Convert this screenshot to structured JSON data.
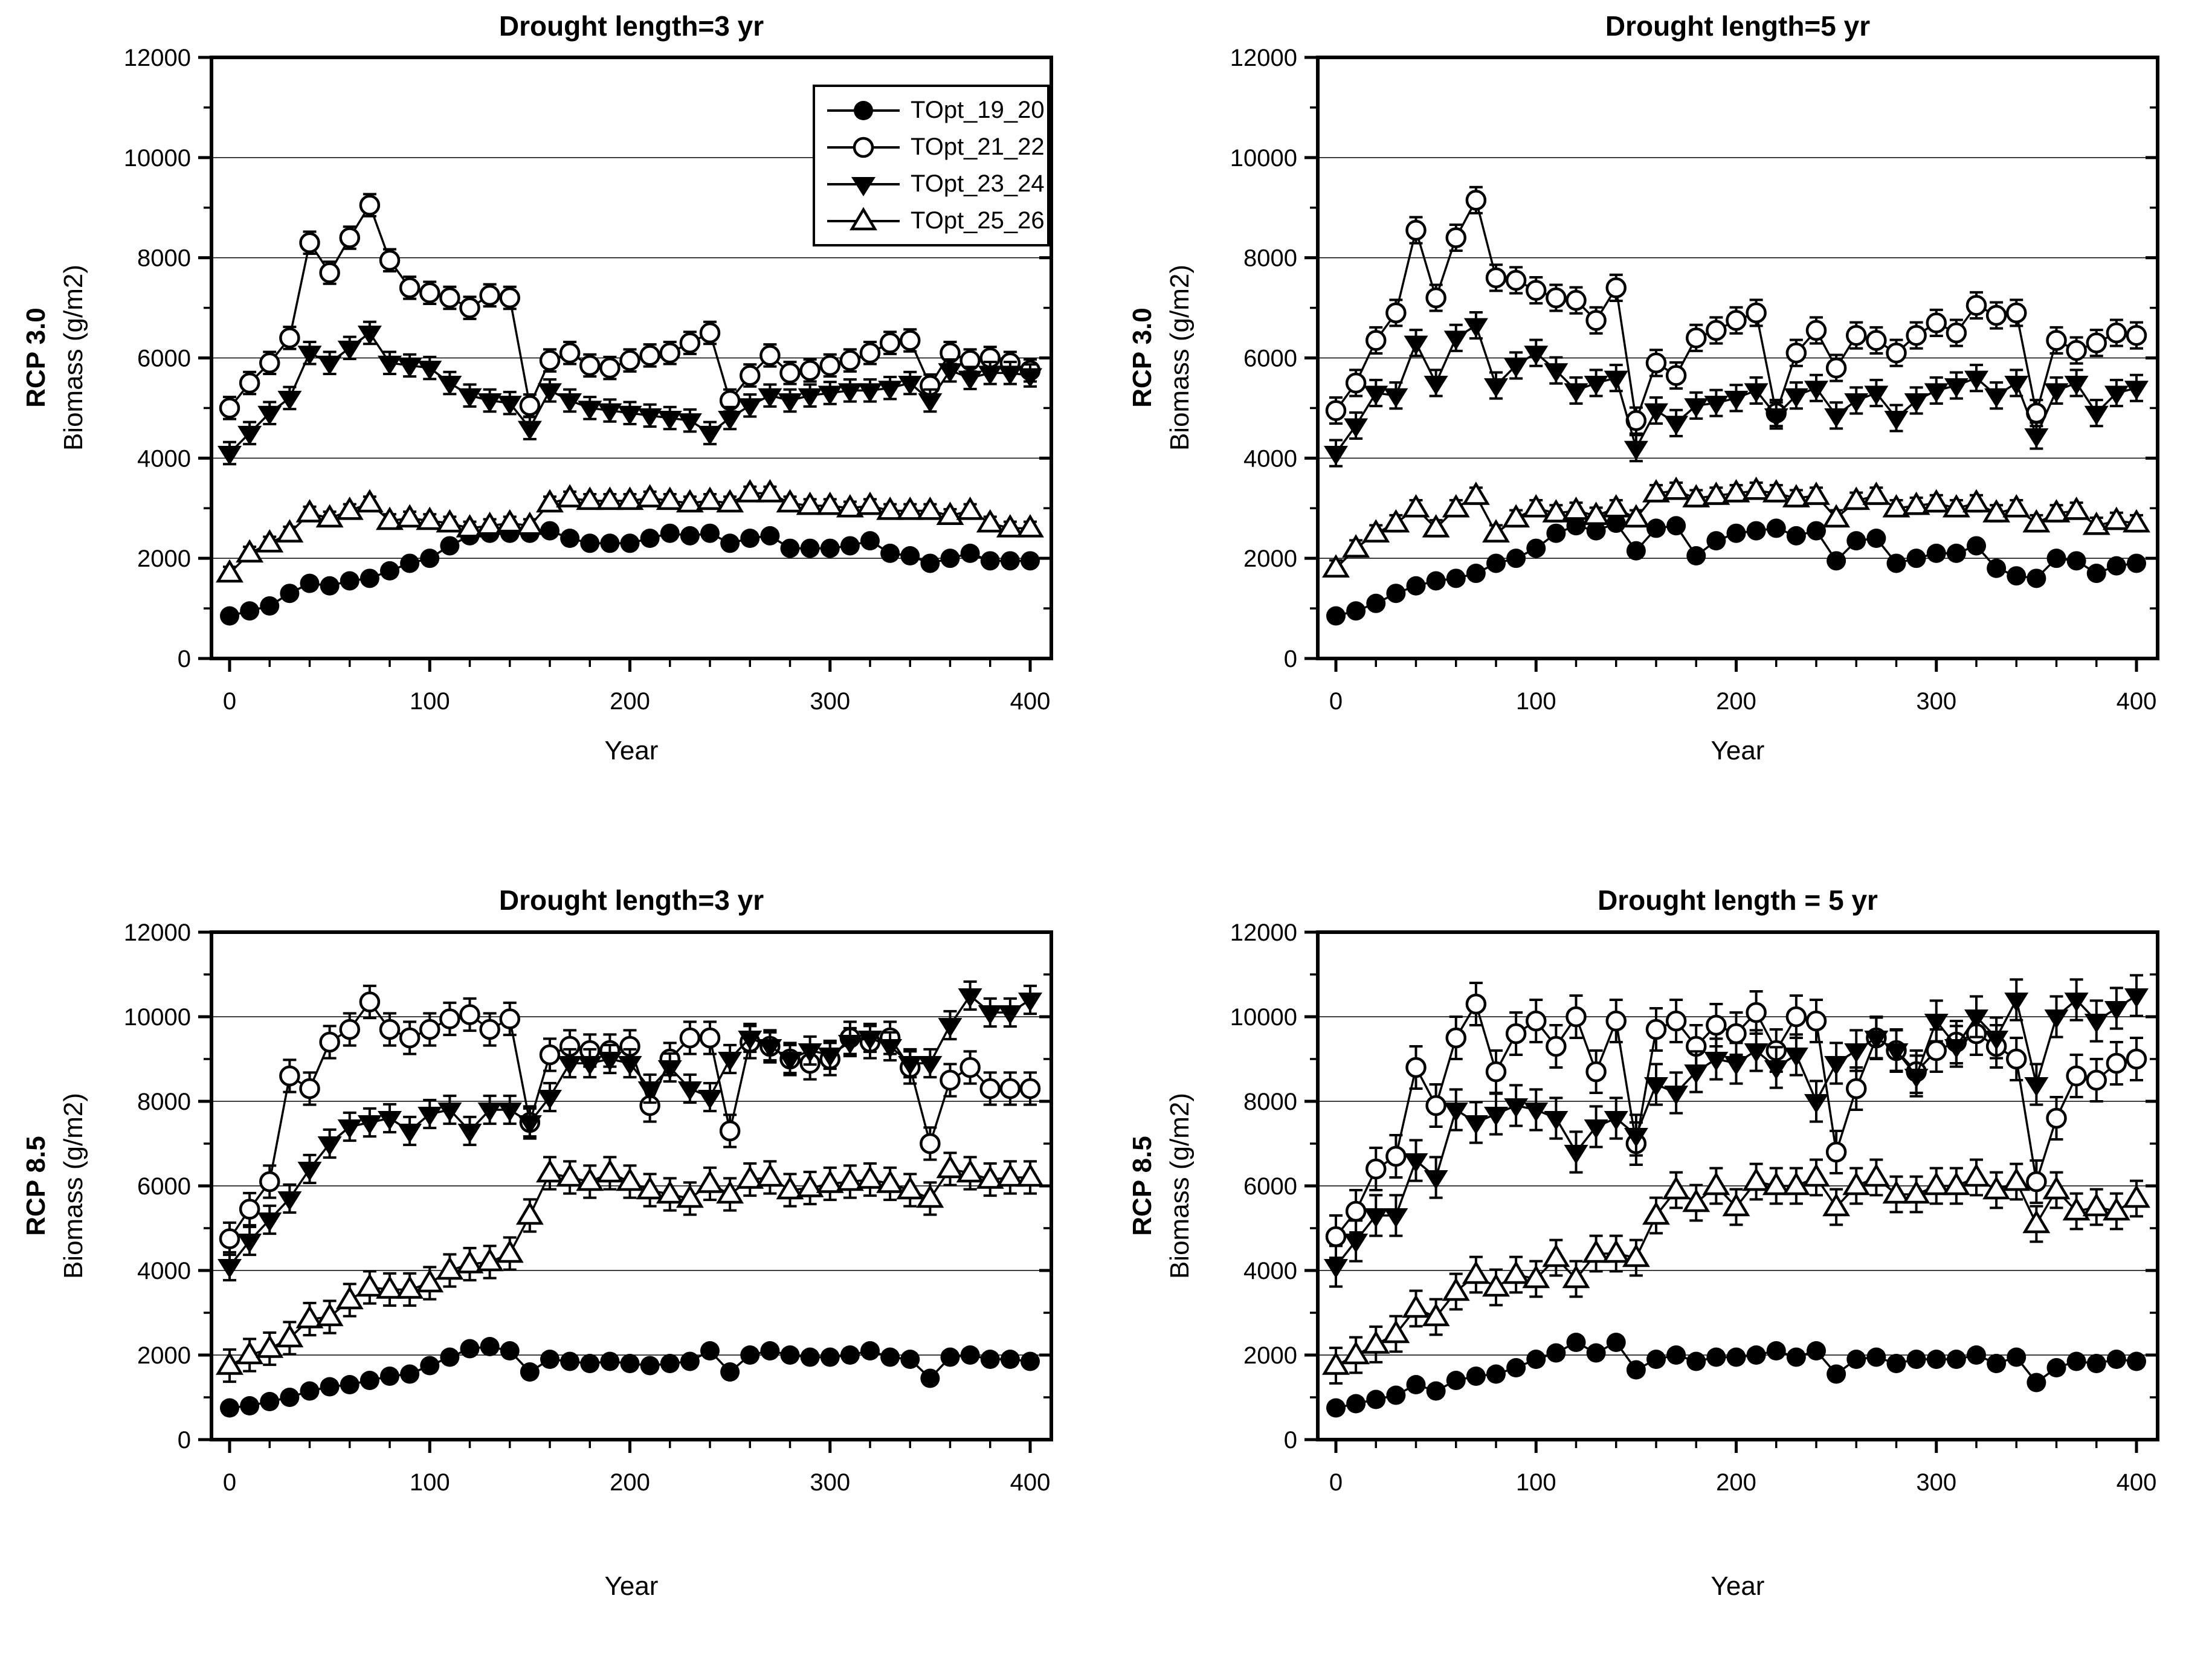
{
  "page": {
    "background": "#ffffff",
    "foreground": "#000000"
  },
  "legend": {
    "entries": [
      {
        "label": "TOpt_19_20",
        "marker": "circle-filled"
      },
      {
        "label": "TOpt_21_22",
        "marker": "circle-open"
      },
      {
        "label": "TOpt_23_24",
        "marker": "triangle-down-filled"
      },
      {
        "label": "TOpt_25_26",
        "marker": "triangle-up-open"
      }
    ]
  },
  "axis_defaults": {
    "x": {
      "label": "Year",
      "min": 0,
      "max": 400,
      "major_tick": 100,
      "minor_tick": 20,
      "tick_labels": [
        0,
        100,
        200,
        300,
        400
      ]
    },
    "y": {
      "label": "Biomass (g/m2)",
      "min": 0,
      "max": 12000,
      "major_tick": 2000,
      "minor_tick": 1000,
      "tick_labels": [
        0,
        2000,
        4000,
        6000,
        8000,
        10000,
        12000
      ],
      "gridlines": [
        2000,
        4000,
        6000,
        8000,
        10000
      ]
    }
  },
  "x_years": [
    0,
    10,
    20,
    30,
    40,
    50,
    60,
    70,
    80,
    90,
    100,
    110,
    120,
    130,
    140,
    150,
    160,
    170,
    180,
    190,
    200,
    210,
    220,
    230,
    240,
    250,
    260,
    270,
    280,
    290,
    300,
    310,
    320,
    330,
    340,
    350,
    360,
    370,
    380,
    390,
    400
  ],
  "chart_data": [
    {
      "type": "line",
      "position": "top-left",
      "row": "top",
      "title": "Drought length=3 yr",
      "row_label": "RCP 3.0",
      "ylabel": "Biomass (g/m2)",
      "xlabel": "Year",
      "xlim": [
        0,
        410
      ],
      "ylim": [
        0,
        12000
      ],
      "grid": true,
      "legend_visible": true,
      "series": [
        {
          "name": "TOpt_19_20",
          "marker": "circle-filled",
          "err": 80,
          "values": [
            850,
            950,
            1050,
            1300,
            1500,
            1450,
            1550,
            1600,
            1750,
            1900,
            2000,
            2250,
            2450,
            2500,
            2500,
            2500,
            2550,
            2400,
            2300,
            2300,
            2300,
            2400,
            2500,
            2450,
            2500,
            2300,
            2400,
            2450,
            2200,
            2200,
            2200,
            2250,
            2350,
            2100,
            2050,
            1900,
            2000,
            2100,
            1950,
            1950,
            1950
          ]
        },
        {
          "name": "TOpt_21_22",
          "marker": "circle-open",
          "err": 220,
          "values": [
            5000,
            5500,
            5900,
            6400,
            8300,
            7700,
            8400,
            9050,
            7950,
            7400,
            7300,
            7200,
            7000,
            7250,
            7200,
            5050,
            5950,
            6100,
            5850,
            5800,
            5950,
            6050,
            6100,
            6300,
            6500,
            5150,
            5650,
            6050,
            5700,
            5750,
            5850,
            5950,
            6100,
            6300,
            6350,
            5450,
            6100,
            5950,
            6000,
            5900,
            5750
          ]
        },
        {
          "name": "TOpt_23_24",
          "marker": "triangle-down-filled",
          "err": 220,
          "values": [
            4100,
            4500,
            4900,
            5200,
            6100,
            5900,
            6200,
            6500,
            5900,
            5850,
            5800,
            5500,
            5250,
            5150,
            5100,
            4600,
            5350,
            5150,
            5000,
            4950,
            4900,
            4850,
            4800,
            4750,
            4500,
            4800,
            5050,
            5250,
            5150,
            5250,
            5300,
            5350,
            5350,
            5400,
            5500,
            5150,
            5750,
            5600,
            5700,
            5700,
            5650
          ]
        },
        {
          "name": "TOpt_25_26",
          "marker": "triangle-up-open",
          "err": 130,
          "values": [
            1700,
            2100,
            2300,
            2500,
            2900,
            2800,
            2950,
            3100,
            2750,
            2800,
            2750,
            2700,
            2600,
            2650,
            2700,
            2650,
            3100,
            3200,
            3150,
            3150,
            3150,
            3200,
            3150,
            3100,
            3150,
            3100,
            3300,
            3300,
            3100,
            3050,
            3050,
            3000,
            3050,
            2950,
            2950,
            2950,
            2850,
            2950,
            2700,
            2600,
            2600
          ]
        }
      ]
    },
    {
      "type": "line",
      "position": "top-right",
      "row": "top",
      "title": "Drought length=5 yr",
      "row_label": "RCP 3.0",
      "ylabel": "Biomass (g/m2)",
      "xlabel": "Year",
      "xlim": [
        0,
        410
      ],
      "ylim": [
        0,
        12000
      ],
      "grid": true,
      "legend_visible": false,
      "series": [
        {
          "name": "TOpt_19_20",
          "marker": "circle-filled",
          "err": 110,
          "values": [
            850,
            950,
            1100,
            1300,
            1450,
            1550,
            1600,
            1700,
            1900,
            2000,
            2200,
            2500,
            2650,
            2550,
            2700,
            2150,
            2600,
            2650,
            2050,
            2350,
            2500,
            2550,
            2600,
            2450,
            2550,
            1950,
            2350,
            2400,
            1900,
            2000,
            2100,
            2100,
            2250,
            1800,
            1650,
            1600,
            2000,
            1950,
            1700,
            1850,
            1900
          ]
        },
        {
          "name": "TOpt_21_22",
          "marker": "circle-open",
          "err": 260,
          "values": [
            4950,
            5500,
            6350,
            6900,
            8550,
            7200,
            8400,
            9150,
            7600,
            7550,
            7350,
            7200,
            7150,
            6750,
            7400,
            4750,
            5900,
            5650,
            6400,
            6550,
            6750,
            6900,
            4900,
            6100,
            6550,
            5800,
            6450,
            6350,
            6100,
            6450,
            6700,
            6500,
            7050,
            6850,
            6900,
            4900,
            6350,
            6150,
            6300,
            6500,
            6450
          ]
        },
        {
          "name": "TOpt_23_24",
          "marker": "triangle-down-filled",
          "err": 260,
          "values": [
            4100,
            4650,
            5300,
            5250,
            6300,
            5500,
            6400,
            6650,
            5450,
            5850,
            6100,
            5750,
            5350,
            5500,
            5600,
            4200,
            4950,
            4700,
            5050,
            5100,
            5200,
            5350,
            4850,
            5250,
            5400,
            4850,
            5150,
            5300,
            4800,
            5150,
            5350,
            5450,
            5600,
            5250,
            5500,
            4450,
            5350,
            5500,
            4900,
            5300,
            5400
          ]
        },
        {
          "name": "TOpt_25_26",
          "marker": "triangle-up-open",
          "err": 160,
          "values": [
            1800,
            2200,
            2500,
            2700,
            3000,
            2600,
            3000,
            3250,
            2500,
            2800,
            3000,
            2900,
            2950,
            2850,
            3000,
            2800,
            3300,
            3350,
            3200,
            3250,
            3300,
            3350,
            3300,
            3200,
            3250,
            2800,
            3150,
            3250,
            3000,
            3050,
            3100,
            3000,
            3100,
            2900,
            3000,
            2700,
            2900,
            2950,
            2650,
            2750,
            2700
          ]
        }
      ]
    },
    {
      "type": "line",
      "position": "bottom-left",
      "row": "bottom",
      "title": "Drought length=3 yr",
      "row_label": "RCP 8.5",
      "ylabel": "Biomass (g/m2)",
      "xlabel": "Year",
      "xlim": [
        0,
        410
      ],
      "ylim": [
        0,
        12000
      ],
      "grid": true,
      "legend_visible": false,
      "series": [
        {
          "name": "TOpt_19_20",
          "marker": "circle-filled",
          "err": 110,
          "values": [
            750,
            800,
            900,
            1000,
            1150,
            1250,
            1300,
            1400,
            1500,
            1550,
            1750,
            1950,
            2150,
            2200,
            2100,
            1600,
            1900,
            1850,
            1800,
            1850,
            1800,
            1750,
            1800,
            1850,
            2100,
            1600,
            2000,
            2100,
            2000,
            1950,
            1950,
            2000,
            2100,
            1950,
            1900,
            1450,
            1950,
            2000,
            1900,
            1900,
            1850
          ]
        },
        {
          "name": "TOpt_21_22",
          "marker": "circle-open",
          "err": 380,
          "values": [
            4750,
            5450,
            6100,
            8600,
            8300,
            9400,
            9700,
            10350,
            9700,
            9500,
            9700,
            9950,
            10050,
            9700,
            9950,
            7500,
            9100,
            9300,
            9200,
            9200,
            9300,
            7900,
            9000,
            9500,
            9500,
            7300,
            9400,
            9300,
            9000,
            8900,
            9000,
            9500,
            9400,
            9500,
            8800,
            7000,
            8500,
            8800,
            8300,
            8300,
            8300
          ]
        },
        {
          "name": "TOpt_23_24",
          "marker": "triangle-down-filled",
          "err": 330,
          "values": [
            4100,
            4700,
            5200,
            5700,
            6400,
            7000,
            7400,
            7500,
            7600,
            7300,
            7700,
            7800,
            7300,
            7800,
            7800,
            7500,
            8100,
            8900,
            8900,
            9000,
            8900,
            8300,
            8800,
            8300,
            8100,
            9000,
            9500,
            9300,
            9000,
            9200,
            9100,
            9400,
            9500,
            9300,
            8900,
            8900,
            9800,
            10500,
            10100,
            10100,
            10400
          ]
        },
        {
          "name": "TOpt_25_26",
          "marker": "triangle-up-open",
          "err": 380,
          "values": [
            1750,
            2000,
            2150,
            2400,
            2850,
            2900,
            3300,
            3600,
            3550,
            3550,
            3700,
            4000,
            4150,
            4200,
            4400,
            5300,
            6300,
            6200,
            6100,
            6300,
            6100,
            5900,
            5800,
            5700,
            6050,
            5800,
            6150,
            6200,
            5900,
            5950,
            6050,
            6100,
            6150,
            6050,
            5900,
            5700,
            6400,
            6300,
            6150,
            6200,
            6200
          ]
        }
      ]
    },
    {
      "type": "line",
      "position": "bottom-right",
      "row": "bottom",
      "title": "Drought length = 5 yr",
      "row_label": "RCP 8.5",
      "ylabel": "Biomass (g/m2)",
      "xlabel": "Year",
      "xlim": [
        0,
        410
      ],
      "ylim": [
        0,
        12000
      ],
      "grid": true,
      "legend_visible": false,
      "series": [
        {
          "name": "TOpt_19_20",
          "marker": "circle-filled",
          "err": 130,
          "values": [
            750,
            850,
            950,
            1050,
            1300,
            1150,
            1400,
            1500,
            1550,
            1700,
            1900,
            2050,
            2300,
            2050,
            2300,
            1650,
            1900,
            2000,
            1850,
            1950,
            1950,
            2000,
            2100,
            1950,
            2100,
            1550,
            1900,
            1950,
            1800,
            1900,
            1900,
            1900,
            2000,
            1800,
            1950,
            1350,
            1700,
            1850,
            1800,
            1900,
            1850
          ]
        },
        {
          "name": "TOpt_21_22",
          "marker": "circle-open",
          "err": 500,
          "values": [
            4800,
            5400,
            6400,
            6700,
            8800,
            7900,
            9500,
            10300,
            8700,
            9600,
            9900,
            9300,
            10000,
            8700,
            9900,
            7000,
            9700,
            9900,
            9300,
            9800,
            9600,
            10100,
            9200,
            10000,
            9900,
            6800,
            8300,
            9500,
            9200,
            8700,
            9200,
            9400,
            9600,
            9300,
            9000,
            6100,
            7600,
            8600,
            8500,
            8900,
            9000
          ]
        },
        {
          "name": "TOpt_23_24",
          "marker": "triangle-down-filled",
          "err": 480,
          "values": [
            4100,
            4700,
            5300,
            5300,
            6600,
            6200,
            7800,
            7500,
            7700,
            7900,
            7800,
            7600,
            6800,
            7400,
            7600,
            7200,
            8400,
            8200,
            8700,
            9000,
            8900,
            9200,
            8800,
            9100,
            8000,
            8900,
            9200,
            9500,
            9200,
            8600,
            9900,
            9300,
            10000,
            9500,
            10400,
            8400,
            10000,
            10400,
            9900,
            10200,
            10500
          ]
        },
        {
          "name": "TOpt_25_26",
          "marker": "triangle-up-open",
          "err": 420,
          "values": [
            1750,
            2000,
            2250,
            2500,
            3100,
            2900,
            3500,
            3900,
            3600,
            3900,
            3800,
            4300,
            3800,
            4400,
            4400,
            4300,
            5300,
            5900,
            5600,
            6000,
            5500,
            6100,
            6000,
            6000,
            6200,
            5500,
            6000,
            6200,
            5800,
            5800,
            6000,
            6000,
            6200,
            5900,
            6100,
            5100,
            5900,
            5400,
            5500,
            5400,
            5700
          ]
        }
      ]
    }
  ]
}
